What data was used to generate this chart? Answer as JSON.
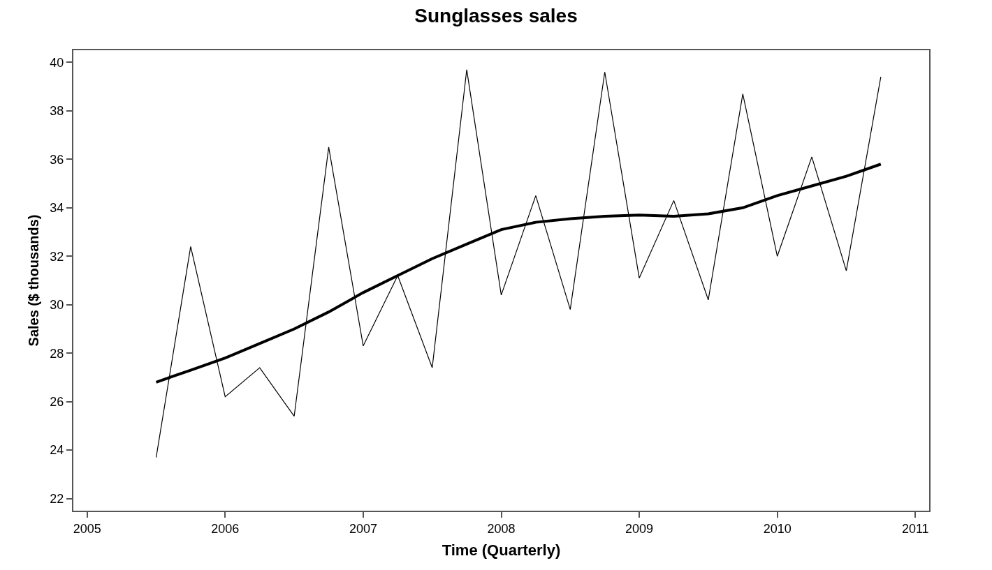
{
  "chart_data": {
    "type": "line",
    "title": "Sunglasses sales",
    "xlabel": "Time (Quarterly)",
    "ylabel": "Sales ($ thousands)",
    "x": [
      2005.5,
      2005.75,
      2006,
      2006.25,
      2006.5,
      2006.75,
      2007,
      2007.25,
      2007.5,
      2007.75,
      2008,
      2008.25,
      2008.5,
      2008.75,
      2009,
      2009.25,
      2009.5,
      2009.75,
      2010,
      2010.25,
      2010.5,
      2010.75
    ],
    "series": [
      {
        "color": "#000000",
        "values": [
          23.7,
          32.4,
          26.2,
          27.4,
          25.4,
          36.5,
          28.3,
          31.2,
          27.4,
          39.7,
          30.4,
          34.5,
          29.8,
          39.6,
          31.1,
          34.3,
          30.2,
          38.7,
          32.0,
          36.1,
          31.4,
          39.4
        ]
      },
      {
        "color": "#000000",
        "values": [
          26.8,
          27.3,
          27.8,
          28.4,
          29.0,
          29.7,
          30.5,
          31.2,
          31.9,
          32.5,
          33.1,
          33.4,
          33.55,
          33.65,
          33.7,
          33.65,
          33.75,
          34.0,
          34.5,
          34.9,
          35.3,
          35.8
        ]
      }
    ],
    "xlim": [
      2004.9,
      2011.1
    ],
    "xticks": [
      2005,
      2006,
      2007,
      2008,
      2009,
      2010,
      2011
    ],
    "ylim": [
      21.5,
      40.5
    ],
    "yticks": [
      22,
      24,
      26,
      28,
      30,
      32,
      34,
      36,
      38,
      40
    ],
    "grid": false,
    "marker": "none",
    "line_style": "solid"
  }
}
